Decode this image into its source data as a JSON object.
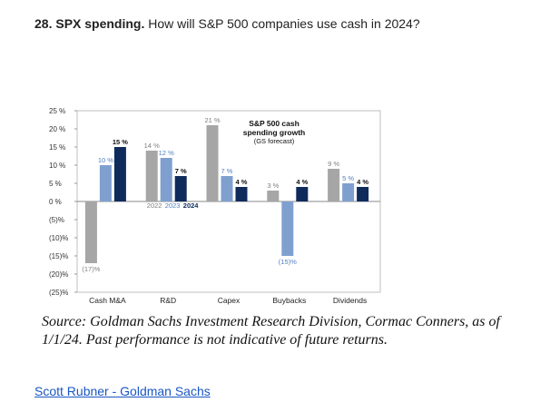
{
  "heading": {
    "number": "28. SPX spending.",
    "question": "How will S&P 500 companies use cash in 2024?"
  },
  "chart_data": {
    "type": "bar",
    "title": "S&P 500 cash spending growth",
    "subtitle": "(GS forecast)",
    "categories": [
      "Cash M&A",
      "R&D",
      "Capex",
      "Buybacks",
      "Dividends"
    ],
    "series": [
      {
        "name": "2022",
        "color": "#a6a6a6",
        "values": [
          -17,
          14,
          21,
          3,
          9
        ],
        "labels": [
          "(17)%",
          "14 %",
          "21 %",
          "3 %",
          "9 %"
        ]
      },
      {
        "name": "2023",
        "color": "#7fa0cf",
        "values": [
          10,
          12,
          7,
          -15,
          5
        ],
        "labels": [
          "10 %",
          "12 %",
          "7 %",
          "(15)%",
          "5 %"
        ]
      },
      {
        "name": "2024",
        "color": "#0f2b5b",
        "values": [
          15,
          7,
          4,
          4,
          4
        ],
        "labels": [
          "15 %",
          "7 %",
          "4 %",
          "4 %",
          "4 %"
        ]
      }
    ],
    "ylim": [
      -25,
      25
    ],
    "yticks": [
      25,
      20,
      15,
      10,
      5,
      0,
      -5,
      -10,
      -15,
      -20,
      -25
    ],
    "ytick_labels": [
      "25 %",
      "20 %",
      "15 %",
      "10 %",
      "5 %",
      "0 %",
      "(5)%",
      "(10)%",
      "(15)%",
      "(20)%",
      "(25)%"
    ],
    "legend_position": "in-plot below R&D bars"
  },
  "source": "Source: Goldman Sachs Investment Research Division, Cormac Conners, as of 1/1/24. Past performance is not indicative of future returns.",
  "link": "Scott Rubner - Goldman Sachs"
}
